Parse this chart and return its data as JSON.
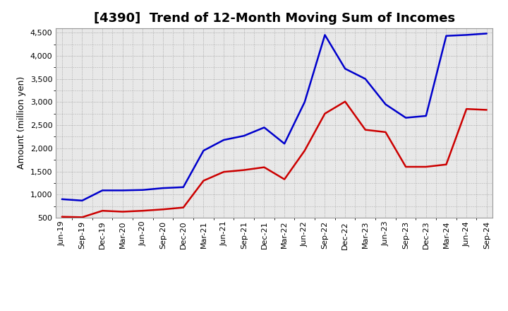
{
  "title": "[4390]  Trend of 12-Month Moving Sum of Incomes",
  "ylabel": "Amount (million yen)",
  "ylim": [
    500,
    4600
  ],
  "yticks": [
    500,
    1000,
    1500,
    2000,
    2500,
    3000,
    3500,
    4000,
    4500
  ],
  "x_labels": [
    "Jun-19",
    "Sep-19",
    "Dec-19",
    "Mar-20",
    "Jun-20",
    "Sep-20",
    "Dec-20",
    "Mar-21",
    "Jun-21",
    "Sep-21",
    "Dec-21",
    "Mar-22",
    "Jun-22",
    "Sep-22",
    "Dec-22",
    "Mar-23",
    "Jun-23",
    "Sep-23",
    "Dec-23",
    "Mar-24",
    "Jun-24",
    "Sep-24"
  ],
  "ordinary_income": [
    900,
    870,
    1090,
    1090,
    1100,
    1140,
    1160,
    1950,
    2180,
    2270,
    2450,
    2100,
    3000,
    4450,
    3720,
    3500,
    2950,
    2660,
    2700,
    4430,
    4450,
    4480
  ],
  "net_income": [
    520,
    510,
    650,
    630,
    650,
    680,
    720,
    1300,
    1490,
    1530,
    1590,
    1330,
    1950,
    2750,
    3010,
    2400,
    2350,
    1600,
    1600,
    1650,
    2850,
    2830
  ],
  "ordinary_color": "#0000cc",
  "net_color": "#cc0000",
  "bg_color": "#e8e8e8",
  "plot_bg": "#e8e8e8",
  "grid_color": "#888888",
  "line_width": 1.8,
  "title_fontsize": 13,
  "label_fontsize": 9,
  "tick_fontsize": 8,
  "legend_fontsize": 9
}
